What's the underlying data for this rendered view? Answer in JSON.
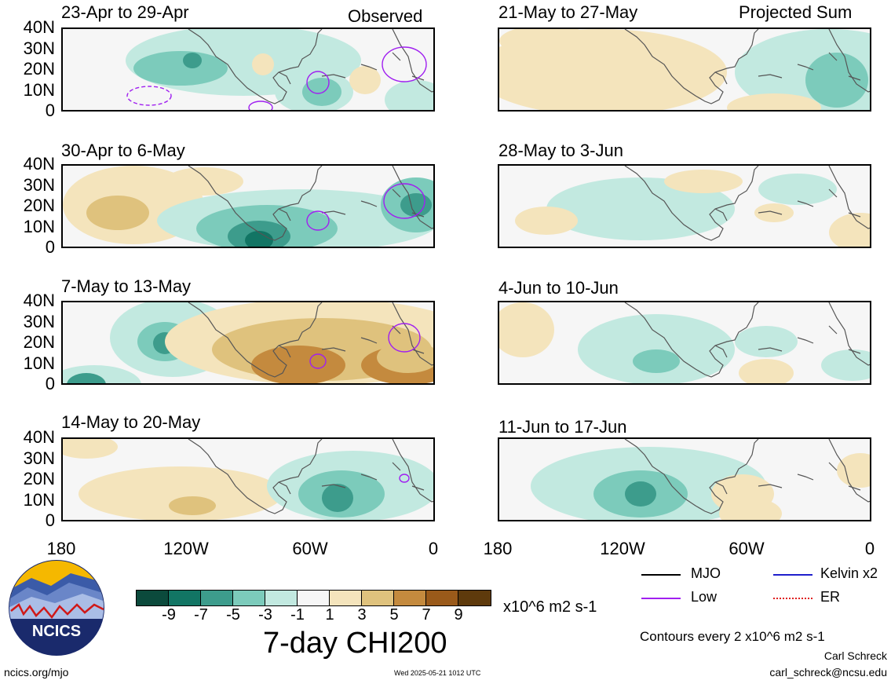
{
  "header": {
    "left": "Observed",
    "right": "Projected Sum"
  },
  "panels_left": [
    {
      "title": "23-Apr to 29-Apr"
    },
    {
      "title": "30-Apr to 6-May"
    },
    {
      "title": "7-May to 13-May"
    },
    {
      "title": "14-May to 20-May"
    }
  ],
  "panels_right": [
    {
      "title": "21-May to 27-May"
    },
    {
      "title": "28-May to 3-Jun"
    },
    {
      "title": "4-Jun to 10-Jun"
    },
    {
      "title": "11-Jun to 17-Jun"
    }
  ],
  "lat_labels": [
    "40N",
    "30N",
    "20N",
    "10N",
    "0"
  ],
  "lon_labels": [
    "180",
    "120W",
    "60W",
    "0"
  ],
  "colorbar": {
    "colors": [
      "#0b4a3c",
      "#127564",
      "#3d9c8c",
      "#7ccbbb",
      "#c2e9e0",
      "#f6f6f6",
      "#f4e4bc",
      "#dfc27d",
      "#c48a3e",
      "#9a5a1a",
      "#5e3a0c"
    ],
    "labels": [
      "-9",
      "-7",
      "-5",
      "-3",
      "-1",
      "1",
      "3",
      "5",
      "7",
      "9"
    ],
    "units": "x10^6 m2 s-1",
    "title": "7-day CHI200"
  },
  "legend": {
    "mjo": {
      "label": "MJO",
      "color": "#000000"
    },
    "kelvin": {
      "label": "Kelvin x2",
      "color": "#1f1fcc"
    },
    "low": {
      "label": "Low",
      "color": "#a020f0"
    },
    "er": {
      "label": "ER",
      "color": "#e02020"
    }
  },
  "contours_note": "Contours every 2 x10^6 m2 s-1",
  "author": "Carl Schreck",
  "email": "carl_schreck@ncsu.edu",
  "site": "ncics.org/mjo",
  "timestamp": "Wed 2025-05-21 1012 UTC",
  "logo_text": "NCICS"
}
